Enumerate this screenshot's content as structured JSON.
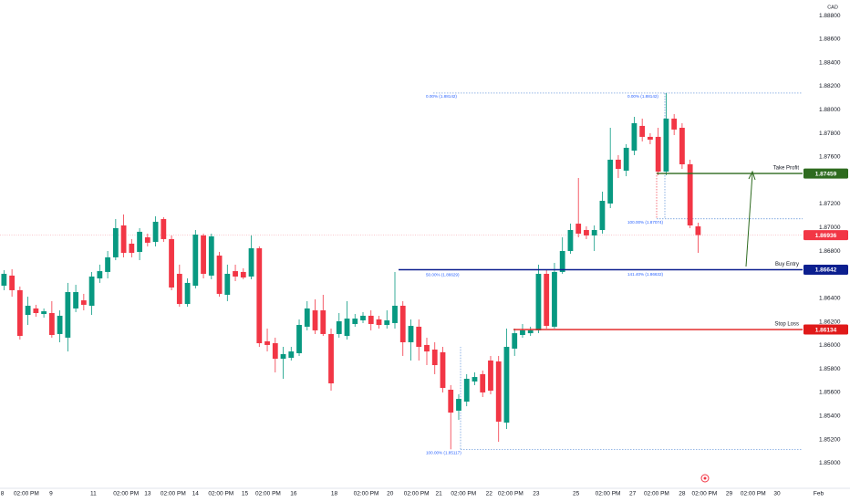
{
  "chart_data": {
    "type": "candlestick",
    "y_axis_label": "CAD",
    "up_color": "#089981",
    "down_color": "#f23645",
    "open": [
      1.86506,
      1.86592,
      1.86468,
      1.86258,
      1.86313,
      1.86266,
      1.86274,
      1.86096,
      1.86065,
      1.86313,
      1.86382,
      1.86336,
      1.86568,
      1.86623,
      1.86747,
      1.87018,
      1.86863,
      1.86793,
      1.86917,
      1.86878,
      1.87072,
      1.86902,
      1.86607,
      1.86351,
      1.86506,
      1.86933,
      1.86592,
      1.86762,
      1.86429,
      1.8663,
      1.86623,
      1.86584,
      1.86824,
      1.86034,
      1.86018,
      1.85886,
      1.85894,
      1.85933,
      1.86158,
      1.86297,
      1.86297,
      1.86096,
      1.86096,
      1.8608,
      1.86181,
      1.86212,
      1.86251,
      1.8622,
      1.86173,
      1.86189,
      1.86336,
      1.86026,
      1.86158,
      1.86003,
      1.85964,
      1.85941,
      1.85623,
      1.85445,
      1.85522,
      1.85693,
      1.85755,
      1.85871,
      1.85863,
      1.85344,
      1.85972,
      1.86088,
      1.86103,
      1.86127,
      1.86607,
      1.86158,
      1.86623,
      1.86801,
      1.87033,
      1.86979,
      1.86933,
      1.86979,
      1.87204,
      1.87576,
      1.87483,
      1.87653,
      1.87863,
      1.8777,
      1.8777,
      1.87475,
      1.87925,
      1.87847,
      1.87537,
      1.8701
    ],
    "high": [
      1.86638,
      1.86646,
      1.86499,
      1.86413,
      1.86344,
      1.86313,
      1.86375,
      1.86297,
      1.8653,
      1.86514,
      1.86437,
      1.86623,
      1.86685,
      1.86801,
      1.87072,
      1.87111,
      1.86902,
      1.86995,
      1.86948,
      1.87095,
      1.87088,
      1.86933,
      1.86685,
      1.86568,
      1.86979,
      1.86948,
      1.86948,
      1.86793,
      1.86685,
      1.86685,
      1.86654,
      1.86933,
      1.8684,
      1.86142,
      1.86065,
      1.85987,
      1.85987,
      1.8622,
      1.86375,
      1.8639,
      1.86429,
      1.86142,
      1.86274,
      1.86375,
      1.86266,
      1.86282,
      1.86297,
      1.86251,
      1.86297,
      1.86623,
      1.86375,
      1.8622,
      1.8622,
      1.86065,
      1.86026,
      1.85987,
      1.85662,
      1.85584,
      1.85755,
      1.8577,
      1.85786,
      1.8591,
      1.8591,
      1.86142,
      1.86142,
      1.86181,
      1.86158,
      1.86685,
      1.86638,
      1.867,
      1.86917,
      1.87033,
      1.87421,
      1.8701,
      1.87018,
      1.87305,
      1.87847,
      1.87615,
      1.87708,
      1.8794,
      1.87925,
      1.87801,
      1.87847,
      1.88142,
      1.87963,
      1.87886,
      1.87576,
      1.87041
    ],
    "low": [
      1.86468,
      1.86413,
      1.86049,
      1.86173,
      1.86243,
      1.86235,
      1.86065,
      1.86026,
      1.85948,
      1.86282,
      1.86297,
      1.86258,
      1.8653,
      1.86568,
      1.86723,
      1.86747,
      1.86747,
      1.86723,
      1.8684,
      1.8684,
      1.86878,
      1.86468,
      1.86328,
      1.86328,
      1.86483,
      1.86568,
      1.86561,
      1.86413,
      1.86375,
      1.86545,
      1.86561,
      1.86561,
      1.85987,
      1.85948,
      1.8577,
      1.85716,
      1.85871,
      1.8591,
      1.86127,
      1.86096,
      1.8608,
      1.85615,
      1.86065,
      1.86049,
      1.86158,
      1.86189,
      1.86127,
      1.86142,
      1.86142,
      1.86142,
      1.8591,
      1.85871,
      1.85871,
      1.85832,
      1.85755,
      1.856,
      1.85117,
      1.85367,
      1.85483,
      1.85662,
      1.85561,
      1.85584,
      1.85181,
      1.8529,
      1.8591,
      1.86065,
      1.8608,
      1.86103,
      1.86142,
      1.86142,
      1.86607,
      1.86778,
      1.86917,
      1.86902,
      1.86801,
      1.86948,
      1.87165,
      1.87421,
      1.87436,
      1.87615,
      1.87731,
      1.87708,
      1.87444,
      1.87444,
      1.87785,
      1.87498,
      1.86995,
      1.86785
    ],
    "close": [
      1.86607,
      1.86468,
      1.8608,
      1.86336,
      1.86274,
      1.86289,
      1.86088,
      1.86251,
      1.86452,
      1.86452,
      1.86344,
      1.86584,
      1.8663,
      1.86747,
      1.86995,
      1.86785,
      1.86785,
      1.86964,
      1.86871,
      1.87049,
      1.86902,
      1.86491,
      1.86351,
      1.8653,
      1.8694,
      1.86607,
      1.86925,
      1.86437,
      1.86607,
      1.86584,
      1.86576,
      1.86824,
      1.86018,
      1.86003,
      1.85886,
      1.85925,
      1.85948,
      1.86173,
      1.86313,
      1.86127,
      1.86096,
      1.85677,
      1.86204,
      1.86227,
      1.86227,
      1.86251,
      1.86181,
      1.86173,
      1.86212,
      1.86336,
      1.86026,
      1.86165,
      1.85987,
      1.85948,
      1.85832,
      1.85638,
      1.85429,
      1.85545,
      1.85716,
      1.85731,
      1.856,
      1.85615,
      1.85352,
      1.85987,
      1.86103,
      1.86127,
      1.86127,
      1.86607,
      1.86165,
      1.86623,
      1.86801,
      1.86979,
      1.86948,
      1.86933,
      1.86979,
      1.87227,
      1.87576,
      1.87498,
      1.87677,
      1.87886,
      1.8777,
      1.87746,
      1.87475,
      1.87925,
      1.87832,
      1.87537,
      1.87018,
      1.86936
    ],
    "xlim": [
      -0.5,
      100.1
    ],
    "xticks": [
      {
        "value": -0.2,
        "label": "8"
      },
      {
        "value": 2.8,
        "label": "02:00 PM"
      },
      {
        "value": 5.9,
        "label": "9"
      },
      {
        "value": 11.2,
        "label": "11"
      },
      {
        "value": 15.3,
        "label": "02:00 PM"
      },
      {
        "value": 18.0,
        "label": "13"
      },
      {
        "value": 21.2,
        "label": "02:00 PM"
      },
      {
        "value": 24.0,
        "label": "14"
      },
      {
        "value": 27.2,
        "label": "02:00 PM"
      },
      {
        "value": 30.2,
        "label": "15"
      },
      {
        "value": 33.1,
        "label": "02:00 PM"
      },
      {
        "value": 36.3,
        "label": "16"
      },
      {
        "value": 41.4,
        "label": "18"
      },
      {
        "value": 45.4,
        "label": "02:00 PM"
      },
      {
        "value": 48.4,
        "label": "20"
      },
      {
        "value": 51.7,
        "label": "02:00 PM"
      },
      {
        "value": 54.5,
        "label": "21"
      },
      {
        "value": 57.6,
        "label": "02:00 PM"
      },
      {
        "value": 60.8,
        "label": "22"
      },
      {
        "value": 63.5,
        "label": "02:00 PM"
      },
      {
        "value": 66.7,
        "label": "23"
      },
      {
        "value": 71.7,
        "label": "25"
      },
      {
        "value": 75.7,
        "label": "02:00 PM"
      },
      {
        "value": 78.8,
        "label": "27"
      },
      {
        "value": 81.8,
        "label": "02:00 PM"
      },
      {
        "value": 85.0,
        "label": "28"
      },
      {
        "value": 87.8,
        "label": "02:00 PM"
      },
      {
        "value": 90.9,
        "label": "29"
      },
      {
        "value": 93.9,
        "label": "02:00 PM"
      },
      {
        "value": 96.9,
        "label": "30"
      },
      {
        "value": 102.1,
        "label": "Feb"
      }
    ],
    "ylim": [
      1.84786,
      1.88932
    ],
    "yticks": [
      {
        "value": 1.85,
        "label": "1.85000"
      },
      {
        "value": 1.852,
        "label": "1.85200"
      },
      {
        "value": 1.854,
        "label": "1.85400"
      },
      {
        "value": 1.856,
        "label": "1.85600"
      },
      {
        "value": 1.858,
        "label": "1.85800"
      },
      {
        "value": 1.86,
        "label": "1.86000"
      },
      {
        "value": 1.862,
        "label": "1.86200"
      },
      {
        "value": 1.864,
        "label": "1.86400"
      },
      {
        "value": 1.868,
        "label": "1.86800"
      },
      {
        "value": 1.87,
        "label": "1.87000"
      },
      {
        "value": 1.872,
        "label": "1.87200"
      },
      {
        "value": 1.876,
        "label": "1.87600"
      },
      {
        "value": 1.878,
        "label": "1.87800"
      },
      {
        "value": 1.88,
        "label": "1.88000"
      },
      {
        "value": 1.882,
        "label": "1.88200"
      },
      {
        "value": 1.884,
        "label": "1.88400"
      },
      {
        "value": 1.886,
        "label": "1.88600"
      },
      {
        "value": 1.888,
        "label": "1.88800"
      }
    ],
    "grid": false,
    "last_price": {
      "value": 1.86936,
      "color": "#f23645"
    },
    "levels": [
      {
        "name": "Take Profit",
        "value": 1.87459,
        "color": "#2e6b1f"
      },
      {
        "name": "Buy Entry",
        "value": 1.86642,
        "color": "#0c1f8f"
      },
      {
        "name": "Stop Loss",
        "value": 1.86134,
        "color": "#e01a1a"
      }
    ],
    "fib_a": [
      {
        "value": 1.88142,
        "label": "0.00% (1.88142)"
      },
      {
        "value": 1.86629,
        "label": "50.00% (1.86629)"
      },
      {
        "value": 1.85117,
        "label": "100.00% (1.85117)"
      }
    ],
    "fib_b": [
      {
        "value": 1.88142,
        "label": "0.00% (1.88142)"
      },
      {
        "value": 1.87074,
        "label": "100.00% (1.87074)"
      },
      {
        "value": 1.86632,
        "label": "141.40% (1.86632)"
      }
    ]
  }
}
